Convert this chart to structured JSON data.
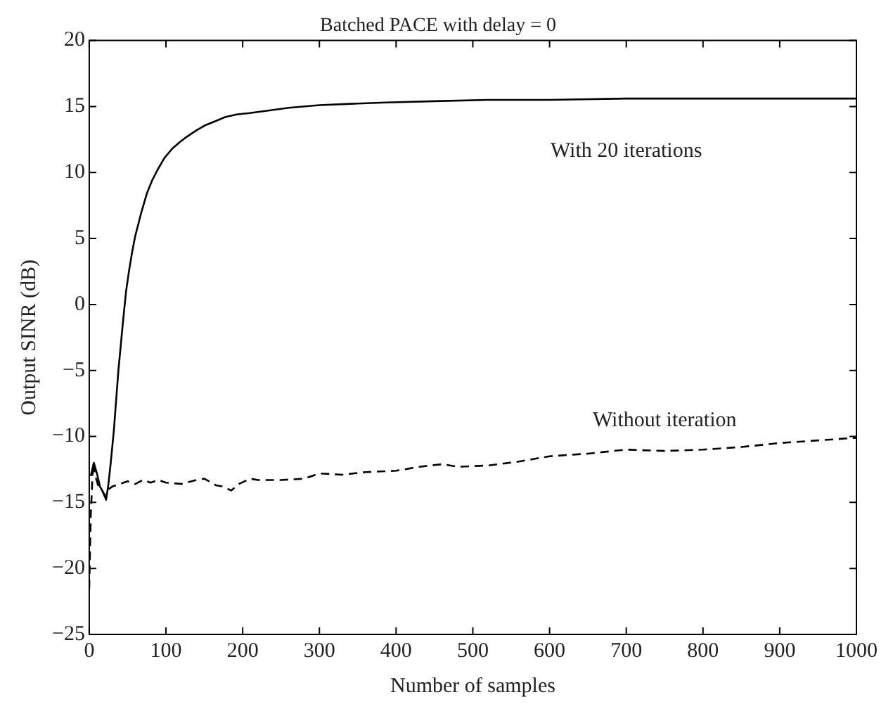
{
  "chart_data": {
    "type": "line",
    "title": "Batched PACE with delay = 0",
    "xlabel": "Number of samples",
    "ylabel": "Output SINR (dB)",
    "xlim": [
      0,
      1000
    ],
    "xticks": [
      0,
      100,
      200,
      300,
      400,
      500,
      600,
      700,
      800,
      900,
      1000
    ],
    "ylim": [
      -25,
      20
    ],
    "yticks": [
      -25,
      -20,
      -15,
      -10,
      -5,
      0,
      5,
      10,
      15,
      20
    ],
    "grid": false,
    "legend": false,
    "marker": "none",
    "series": [
      {
        "name": "With 20 iterations",
        "color": "#000000",
        "line_style": "solid",
        "x": [
          2,
          6,
          10,
          14,
          18,
          22,
          25,
          28,
          32,
          38,
          44,
          48,
          52,
          56,
          60,
          68,
          75,
          82,
          89,
          98,
          108,
          118,
          127,
          140,
          152,
          165,
          177,
          192,
          209,
          235,
          260,
          300,
          340,
          386,
          450,
          520,
          600,
          700,
          800,
          900,
          1000
        ],
        "values": [
          -13,
          -12,
          -12.8,
          -13.8,
          -14.2,
          -14.8,
          -13.6,
          -12,
          -9.6,
          -5,
          -1.3,
          1,
          2.6,
          4,
          5.2,
          7,
          8.4,
          9.4,
          10.2,
          11.1,
          11.8,
          12.3,
          12.7,
          13.2,
          13.6,
          13.9,
          14.2,
          14.4,
          14.5,
          14.7,
          14.9,
          15.1,
          15.2,
          15.3,
          15.4,
          15.5,
          15.5,
          15.6,
          15.6,
          15.6,
          15.6
        ]
      },
      {
        "name": "Without iteration",
        "color": "#000000",
        "line_style": "dashed",
        "x": [
          0,
          2,
          5,
          8,
          12,
          16,
          20,
          25,
          30,
          40,
          50,
          60,
          70,
          80,
          90,
          100,
          120,
          140,
          150,
          165,
          175,
          185,
          195,
          210,
          220,
          250,
          280,
          300,
          330,
          360,
          400,
          430,
          460,
          480,
          520,
          560,
          600,
          650,
          700,
          750,
          800,
          850,
          900,
          950,
          1000
        ],
        "values": [
          -21.5,
          -16,
          -12,
          -13,
          -13.8,
          -14,
          -14.5,
          -14,
          -13.8,
          -13.6,
          -13.4,
          -13.6,
          -13.3,
          -13.5,
          -13.3,
          -13.5,
          -13.6,
          -13.3,
          -13.2,
          -13.7,
          -13.8,
          -14.1,
          -13.6,
          -13.2,
          -13.3,
          -13.3,
          -13.2,
          -12.8,
          -12.9,
          -12.7,
          -12.6,
          -12.3,
          -12.1,
          -12.3,
          -12.2,
          -11.9,
          -11.5,
          -11.3,
          -11,
          -11.1,
          -11,
          -10.8,
          -10.5,
          -10.3,
          -10.1
        ]
      }
    ]
  }
}
